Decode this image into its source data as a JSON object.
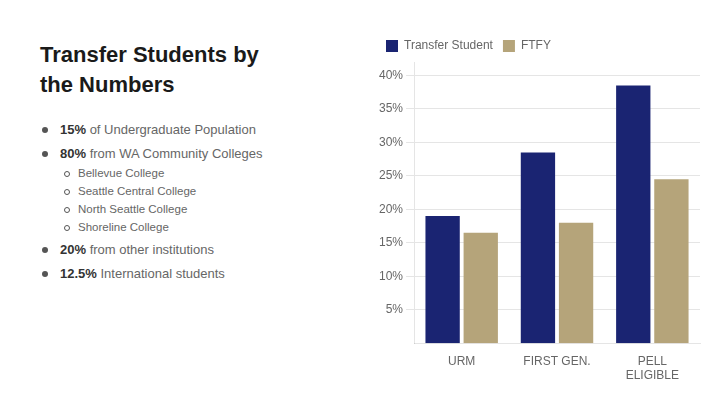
{
  "chart_data": {
    "type": "bar",
    "title": [
      "Transfer Students by",
      "the Numbers"
    ],
    "annotations": [
      "15% of Undergraduate Population",
      "80% from WA Community Colleges",
      [
        "Bellevue College",
        "Seattle Central College",
        "North Seattle College",
        "Shoreline College"
      ],
      "20% from other institutions",
      "12.5% International students"
    ],
    "categories": [
      "URM",
      "FIRST GEN.",
      "PELL\nELIGIBLE"
    ],
    "series": [
      {
        "name": "Transfer Student",
        "color": "#1a2472",
        "values": [
          0.19,
          0.285,
          0.385
        ]
      },
      {
        "name": "FTFY",
        "color": "#b5a47a",
        "values": [
          0.165,
          0.18,
          0.245
        ]
      }
    ],
    "ylim": [
      0,
      0.42
    ],
    "yticks": [
      {
        "value": 0.05,
        "label": "5%"
      },
      {
        "value": 0.1,
        "label": "10%"
      },
      {
        "value": 0.15,
        "label": "15%"
      },
      {
        "value": 0.2,
        "label": "20%"
      },
      {
        "value": 0.25,
        "label": "25%"
      },
      {
        "value": 0.3,
        "label": "30%"
      },
      {
        "value": 0.35,
        "label": "35%"
      },
      {
        "value": 0.4,
        "label": "40%"
      }
    ],
    "grid": true,
    "legend": "upper left"
  }
}
